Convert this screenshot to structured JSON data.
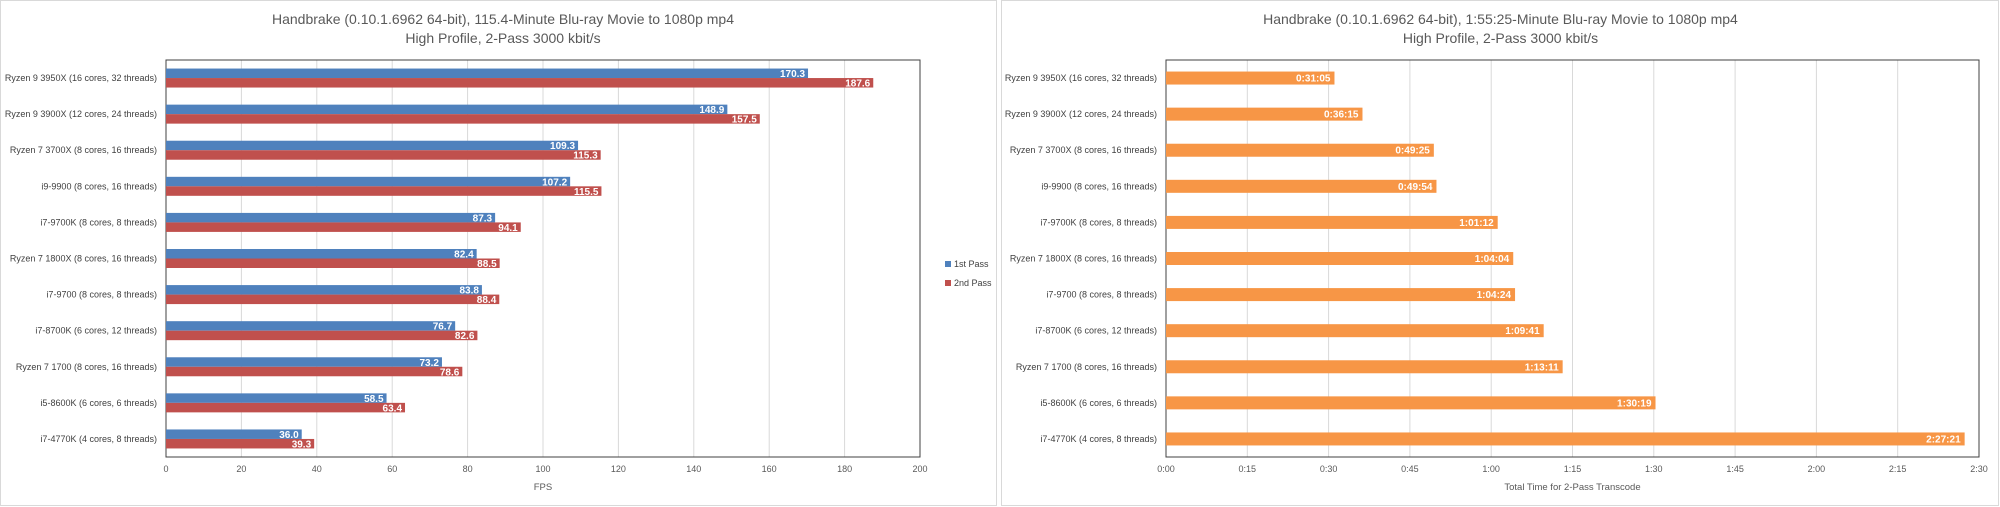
{
  "colors": {
    "first_pass": "#4F81BD",
    "second_pass": "#C0504D",
    "total": "#F79646",
    "grid": "#D9D9D9"
  },
  "chart_data": [
    {
      "type": "bar",
      "orientation": "horizontal",
      "title": [
        "Handbrake (0.10.1.6962 64-bit), 115.4-Minute Blu-ray Movie to 1080p mp4",
        "High Profile, 2-Pass 3000 kbit/s"
      ],
      "xlabel": "FPS",
      "xlim": [
        0,
        200
      ],
      "xticks": [
        "0",
        "20",
        "40",
        "60",
        "80",
        "100",
        "120",
        "140",
        "160",
        "180",
        "200"
      ],
      "grid": true,
      "legend": "right",
      "categories": [
        "Ryzen 9 3950X (16 cores, 32 threads)",
        "Ryzen 9 3900X (12 cores, 24 threads)",
        "Ryzen 7 3700X (8 cores, 16 threads)",
        "i9-9900 (8 cores, 16 threads)",
        "i7-9700K (8 cores, 8 threads)",
        "Ryzen 7 1800X (8 cores, 16 threads)",
        "i7-9700 (8 cores, 8 threads)",
        "i7-8700K (6 cores, 12 threads)",
        "Ryzen 7 1700 (8 cores, 16 threads)",
        "i5-8600K (6 cores, 6 threads)",
        "i7-4770K (4 cores, 8 threads)"
      ],
      "series": [
        {
          "name": "1st Pass",
          "values": [
            170.3,
            148.9,
            109.3,
            107.2,
            87.3,
            82.4,
            83.8,
            76.7,
            73.2,
            58.5,
            36.0
          ],
          "labels": [
            "170.3",
            "148.9",
            "109.3",
            "107.2",
            "87.3",
            "82.4",
            "83.8",
            "76.7",
            "73.2",
            "58.5",
            "36.0"
          ]
        },
        {
          "name": "2nd Pass",
          "values": [
            187.6,
            157.5,
            115.3,
            115.5,
            94.1,
            88.5,
            88.4,
            82.6,
            78.6,
            63.4,
            39.3
          ],
          "labels": [
            "187.6",
            "157.5",
            "115.3",
            "115.5",
            "94.1",
            "88.5",
            "88.4",
            "82.6",
            "78.6",
            "63.4",
            "39.3"
          ]
        }
      ]
    },
    {
      "type": "bar",
      "orientation": "horizontal",
      "title": [
        "Handbrake (0.10.1.6962 64-bit), 1:55:25-Minute Blu-ray Movie to 1080p mp4",
        "High Profile, 2-Pass 3000 kbit/s"
      ],
      "xlabel": "Total Time for 2-Pass Transcode",
      "xlim": [
        "0:00",
        "2:30"
      ],
      "xticks": [
        "0:00",
        "0:15",
        "0:30",
        "0:45",
        "1:00",
        "1:15",
        "1:30",
        "1:45",
        "2:00",
        "2:15",
        "2:30"
      ],
      "grid": true,
      "categories": [
        "Ryzen 9 3950X (16 cores, 32 threads)",
        "Ryzen 9 3900X (12 cores, 24 threads)",
        "Ryzen 7 3700X (8 cores, 16 threads)",
        "i9-9900 (8 cores, 16 threads)",
        "i7-9700K (8 cores, 8 threads)",
        "Ryzen 7 1800X (8 cores, 16 threads)",
        "i7-9700 (8 cores, 8 threads)",
        "i7-8700K (6 cores, 12 threads)",
        "Ryzen 7 1700 (8 cores, 16 threads)",
        "i5-8600K (6 cores, 6 threads)",
        "i7-4770K (4 cores, 8 threads)"
      ],
      "series": [
        {
          "values": [
            "0:31:05",
            "0:36:15",
            "0:49:25",
            "0:49:54",
            "1:01:12",
            "1:04:04",
            "1:04:24",
            "1:09:41",
            "1:13:11",
            "1:30:19",
            "2:27:21"
          ]
        }
      ]
    }
  ]
}
